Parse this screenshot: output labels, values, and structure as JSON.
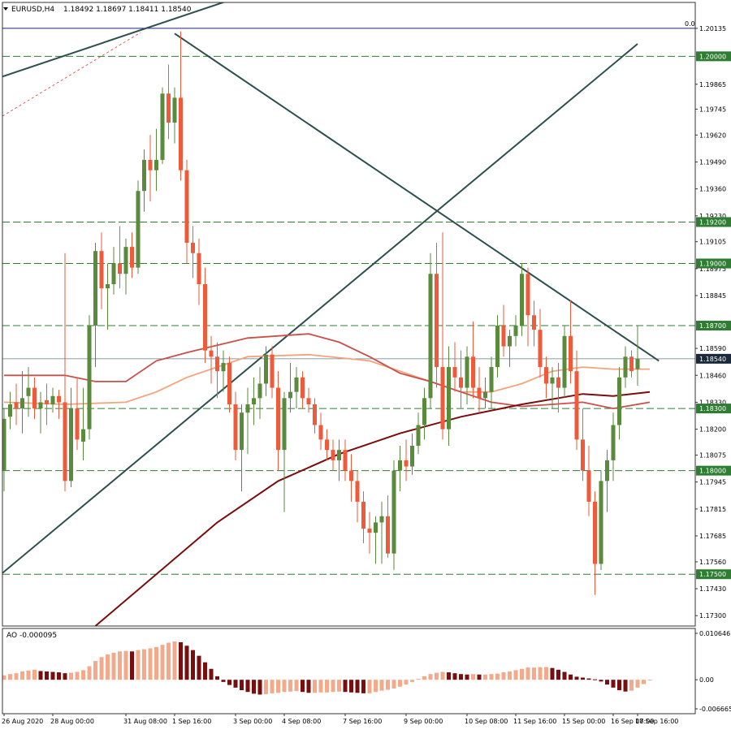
{
  "header": {
    "symbol": "EURUSD,H4",
    "ohlc": "1.18492 1.18697 1.18411 1.18540"
  },
  "oscillator": {
    "label": "AO -0.000095",
    "ticks": [
      "0.010646",
      "0.00",
      "-0.006665"
    ]
  },
  "colors": {
    "bull": "#5a8a3c",
    "bear": "#ee5a3a",
    "ma_fast": "#f4a37a",
    "ma_mid": "#c9504a",
    "ma_slow": "#7a0d0d",
    "level_line": "#2e7d32",
    "trend_line": "#2f4f4f",
    "ao_up": "#f4a98a",
    "ao_down": "#7a0d0d"
  },
  "chart_data": [
    {
      "type": "candlestick",
      "title": "EURUSD,H4",
      "ylim": [
        1.1725,
        1.2026
      ],
      "y_ticks": [
        "1.20135",
        "1.19865",
        "1.19745",
        "1.19620",
        "1.19490",
        "1.19360",
        "1.19230",
        "1.19105",
        "1.18975",
        "1.18845",
        "1.18590",
        "1.18460",
        "1.18330",
        "1.18200",
        "1.18075",
        "1.17945",
        "1.17815",
        "1.17685",
        "1.17560",
        "1.17430",
        "1.17300"
      ],
      "x_labels": [
        "26 Aug 2020",
        "28 Aug 00:00",
        "31 Aug 08:00",
        "1 Sep 16:00",
        "3 Sep 00:00",
        "4 Sep 08:00",
        "7 Sep 16:00",
        "9 Sep 00:00",
        "10 Sep 08:00",
        "11 Sep 16:00",
        "15 Sep 00:00",
        "16 Sep 08:00",
        "17 Sep 16:00"
      ],
      "levels": [
        {
          "value": 1.2,
          "label": "1.20000"
        },
        {
          "value": 1.192,
          "label": "1.19200"
        },
        {
          "value": 1.19,
          "label": "1.19000"
        },
        {
          "value": 1.187,
          "label": "1.18700"
        },
        {
          "value": 1.183,
          "label": "1.18300"
        },
        {
          "value": 1.18,
          "label": "1.18000"
        },
        {
          "value": 1.175,
          "label": "1.17500"
        }
      ],
      "current_price": {
        "value": 1.1854,
        "label": "1.18540"
      },
      "top_line_label": "0.0",
      "candles": [
        {
          "o": 1.18,
          "h": 1.183,
          "l": 1.179,
          "c": 1.1825
        },
        {
          "o": 1.1826,
          "h": 1.1838,
          "l": 1.182,
          "c": 1.1832
        },
        {
          "o": 1.1833,
          "h": 1.1842,
          "l": 1.1822,
          "c": 1.183
        },
        {
          "o": 1.183,
          "h": 1.1848,
          "l": 1.1818,
          "c": 1.1835
        },
        {
          "o": 1.1836,
          "h": 1.185,
          "l": 1.1826,
          "c": 1.184
        },
        {
          "o": 1.184,
          "h": 1.1845,
          "l": 1.1825,
          "c": 1.183
        },
        {
          "o": 1.183,
          "h": 1.1838,
          "l": 1.1818,
          "c": 1.1833
        },
        {
          "o": 1.1834,
          "h": 1.1842,
          "l": 1.1822,
          "c": 1.1832
        },
        {
          "o": 1.1832,
          "h": 1.184,
          "l": 1.1828,
          "c": 1.1836
        },
        {
          "o": 1.1836,
          "h": 1.1839,
          "l": 1.1825,
          "c": 1.1833
        },
        {
          "o": 1.1833,
          "h": 1.1905,
          "l": 1.179,
          "c": 1.1795
        },
        {
          "o": 1.1795,
          "h": 1.184,
          "l": 1.1792,
          "c": 1.183
        },
        {
          "o": 1.183,
          "h": 1.1845,
          "l": 1.181,
          "c": 1.1815
        },
        {
          "o": 1.1814,
          "h": 1.184,
          "l": 1.1805,
          "c": 1.182
        },
        {
          "o": 1.182,
          "h": 1.1875,
          "l": 1.1815,
          "c": 1.187
        },
        {
          "o": 1.187,
          "h": 1.191,
          "l": 1.185,
          "c": 1.1906
        },
        {
          "o": 1.1906,
          "h": 1.1915,
          "l": 1.1878,
          "c": 1.1888
        },
        {
          "o": 1.1888,
          "h": 1.19,
          "l": 1.1868,
          "c": 1.189
        },
        {
          "o": 1.189,
          "h": 1.1908,
          "l": 1.1885,
          "c": 1.19
        },
        {
          "o": 1.19,
          "h": 1.1918,
          "l": 1.1888,
          "c": 1.1895
        },
        {
          "o": 1.1895,
          "h": 1.1912,
          "l": 1.1885,
          "c": 1.1908
        },
        {
          "o": 1.1908,
          "h": 1.1915,
          "l": 1.1893,
          "c": 1.1898
        },
        {
          "o": 1.1898,
          "h": 1.194,
          "l": 1.1895,
          "c": 1.1935
        },
        {
          "o": 1.1935,
          "h": 1.1955,
          "l": 1.1925,
          "c": 1.195
        },
        {
          "o": 1.195,
          "h": 1.1962,
          "l": 1.193,
          "c": 1.1945
        },
        {
          "o": 1.1945,
          "h": 1.1965,
          "l": 1.1935,
          "c": 1.195
        },
        {
          "o": 1.195,
          "h": 1.1985,
          "l": 1.1948,
          "c": 1.1982
        },
        {
          "o": 1.1982,
          "h": 1.1996,
          "l": 1.196,
          "c": 1.1968
        },
        {
          "o": 1.1968,
          "h": 1.1985,
          "l": 1.1958,
          "c": 1.198
        },
        {
          "o": 1.198,
          "h": 1.2012,
          "l": 1.194,
          "c": 1.1945
        },
        {
          "o": 1.1945,
          "h": 1.195,
          "l": 1.19,
          "c": 1.191
        },
        {
          "o": 1.191,
          "h": 1.1918,
          "l": 1.1893,
          "c": 1.1905
        },
        {
          "o": 1.1905,
          "h": 1.1912,
          "l": 1.188,
          "c": 1.189
        },
        {
          "o": 1.189,
          "h": 1.1898,
          "l": 1.1852,
          "c": 1.1858
        },
        {
          "o": 1.1858,
          "h": 1.1865,
          "l": 1.1842,
          "c": 1.1855
        },
        {
          "o": 1.1855,
          "h": 1.1862,
          "l": 1.1835,
          "c": 1.1848
        },
        {
          "o": 1.1848,
          "h": 1.1858,
          "l": 1.1838,
          "c": 1.1852
        },
        {
          "o": 1.1852,
          "h": 1.1855,
          "l": 1.1828,
          "c": 1.1832
        },
        {
          "o": 1.1832,
          "h": 1.1838,
          "l": 1.1805,
          "c": 1.181
        },
        {
          "o": 1.181,
          "h": 1.1832,
          "l": 1.179,
          "c": 1.1828
        },
        {
          "o": 1.1828,
          "h": 1.184,
          "l": 1.1808,
          "c": 1.1832
        },
        {
          "o": 1.1832,
          "h": 1.1845,
          "l": 1.1822,
          "c": 1.1835
        },
        {
          "o": 1.1835,
          "h": 1.185,
          "l": 1.1825,
          "c": 1.1842
        },
        {
          "o": 1.1842,
          "h": 1.186,
          "l": 1.1836,
          "c": 1.1856
        },
        {
          "o": 1.1856,
          "h": 1.186,
          "l": 1.1835,
          "c": 1.184
        },
        {
          "o": 1.184,
          "h": 1.1848,
          "l": 1.18,
          "c": 1.181
        },
        {
          "o": 1.181,
          "h": 1.1838,
          "l": 1.178,
          "c": 1.1835
        },
        {
          "o": 1.1835,
          "h": 1.1852,
          "l": 1.1828,
          "c": 1.1838
        },
        {
          "o": 1.1838,
          "h": 1.185,
          "l": 1.183,
          "c": 1.1845
        },
        {
          "o": 1.1845,
          "h": 1.1848,
          "l": 1.183,
          "c": 1.1835
        },
        {
          "o": 1.1835,
          "h": 1.184,
          "l": 1.1828,
          "c": 1.1832
        },
        {
          "o": 1.1832,
          "h": 1.1835,
          "l": 1.1818,
          "c": 1.1822
        },
        {
          "o": 1.1822,
          "h": 1.1828,
          "l": 1.181,
          "c": 1.1815
        },
        {
          "o": 1.1815,
          "h": 1.182,
          "l": 1.1805,
          "c": 1.181
        },
        {
          "o": 1.181,
          "h": 1.1815,
          "l": 1.18,
          "c": 1.1805
        },
        {
          "o": 1.1805,
          "h": 1.1815,
          "l": 1.1795,
          "c": 1.181
        },
        {
          "o": 1.181,
          "h": 1.1815,
          "l": 1.1795,
          "c": 1.18
        },
        {
          "o": 1.18,
          "h": 1.1808,
          "l": 1.1785,
          "c": 1.1795
        },
        {
          "o": 1.1795,
          "h": 1.18,
          "l": 1.1775,
          "c": 1.1785
        },
        {
          "o": 1.1785,
          "h": 1.179,
          "l": 1.1765,
          "c": 1.1772
        },
        {
          "o": 1.1772,
          "h": 1.178,
          "l": 1.176,
          "c": 1.177
        },
        {
          "o": 1.177,
          "h": 1.1778,
          "l": 1.1755,
          "c": 1.1775
        },
        {
          "o": 1.1775,
          "h": 1.1785,
          "l": 1.1755,
          "c": 1.1778
        },
        {
          "o": 1.1778,
          "h": 1.1788,
          "l": 1.1758,
          "c": 1.176
        },
        {
          "o": 1.176,
          "h": 1.1805,
          "l": 1.1752,
          "c": 1.18
        },
        {
          "o": 1.18,
          "h": 1.1812,
          "l": 1.179,
          "c": 1.1805
        },
        {
          "o": 1.1805,
          "h": 1.1815,
          "l": 1.1795,
          "c": 1.1802
        },
        {
          "o": 1.1802,
          "h": 1.1818,
          "l": 1.1798,
          "c": 1.1812
        },
        {
          "o": 1.1812,
          "h": 1.1828,
          "l": 1.1808,
          "c": 1.1822
        },
        {
          "o": 1.1822,
          "h": 1.184,
          "l": 1.1815,
          "c": 1.1835
        },
        {
          "o": 1.1835,
          "h": 1.1905,
          "l": 1.183,
          "c": 1.1895
        },
        {
          "o": 1.1895,
          "h": 1.191,
          "l": 1.184,
          "c": 1.185
        },
        {
          "o": 1.185,
          "h": 1.1915,
          "l": 1.1815,
          "c": 1.182
        },
        {
          "o": 1.182,
          "h": 1.186,
          "l": 1.1812,
          "c": 1.185
        },
        {
          "o": 1.185,
          "h": 1.1862,
          "l": 1.1838,
          "c": 1.1845
        },
        {
          "o": 1.1845,
          "h": 1.1858,
          "l": 1.183,
          "c": 1.184
        },
        {
          "o": 1.184,
          "h": 1.186,
          "l": 1.1832,
          "c": 1.1855
        },
        {
          "o": 1.1855,
          "h": 1.1872,
          "l": 1.1835,
          "c": 1.184
        },
        {
          "o": 1.184,
          "h": 1.185,
          "l": 1.1828,
          "c": 1.1835
        },
        {
          "o": 1.1835,
          "h": 1.1845,
          "l": 1.183,
          "c": 1.1838
        },
        {
          "o": 1.1838,
          "h": 1.1855,
          "l": 1.183,
          "c": 1.185
        },
        {
          "o": 1.185,
          "h": 1.1875,
          "l": 1.1845,
          "c": 1.187
        },
        {
          "o": 1.187,
          "h": 1.188,
          "l": 1.1855,
          "c": 1.186
        },
        {
          "o": 1.186,
          "h": 1.1868,
          "l": 1.185,
          "c": 1.1865
        },
        {
          "o": 1.1865,
          "h": 1.1875,
          "l": 1.186,
          "c": 1.187
        },
        {
          "o": 1.187,
          "h": 1.19,
          "l": 1.1865,
          "c": 1.1895
        },
        {
          "o": 1.1895,
          "h": 1.1898,
          "l": 1.186,
          "c": 1.1875
        },
        {
          "o": 1.1875,
          "h": 1.1882,
          "l": 1.186,
          "c": 1.1868
        },
        {
          "o": 1.1868,
          "h": 1.1878,
          "l": 1.1845,
          "c": 1.185
        },
        {
          "o": 1.185,
          "h": 1.1855,
          "l": 1.1835,
          "c": 1.1842
        },
        {
          "o": 1.1842,
          "h": 1.185,
          "l": 1.183,
          "c": 1.1845
        },
        {
          "o": 1.1845,
          "h": 1.1852,
          "l": 1.1828,
          "c": 1.184
        },
        {
          "o": 1.184,
          "h": 1.187,
          "l": 1.1835,
          "c": 1.1865
        },
        {
          "o": 1.1865,
          "h": 1.1882,
          "l": 1.1842,
          "c": 1.1848
        },
        {
          "o": 1.1848,
          "h": 1.1858,
          "l": 1.181,
          "c": 1.1815
        },
        {
          "o": 1.1815,
          "h": 1.183,
          "l": 1.1795,
          "c": 1.18
        },
        {
          "o": 1.18,
          "h": 1.1812,
          "l": 1.1778,
          "c": 1.1785
        },
        {
          "o": 1.1785,
          "h": 1.179,
          "l": 1.174,
          "c": 1.1755
        },
        {
          "o": 1.1755,
          "h": 1.18,
          "l": 1.1752,
          "c": 1.1795
        },
        {
          "o": 1.1795,
          "h": 1.181,
          "l": 1.178,
          "c": 1.1805
        },
        {
          "o": 1.1805,
          "h": 1.1828,
          "l": 1.1795,
          "c": 1.1822
        },
        {
          "o": 1.1822,
          "h": 1.185,
          "l": 1.1815,
          "c": 1.1845
        },
        {
          "o": 1.1845,
          "h": 1.186,
          "l": 1.184,
          "c": 1.1855
        },
        {
          "o": 1.1855,
          "h": 1.1858,
          "l": 1.1845,
          "c": 1.1848
        },
        {
          "o": 1.1849,
          "h": 1.187,
          "l": 1.1841,
          "c": 1.1854
        }
      ],
      "moving_averages": [
        {
          "name": "ma_fast",
          "color": "#f4a37a",
          "points": [
            [
              0,
              1.1833
            ],
            [
              10,
              1.1832
            ],
            [
              20,
              1.1833
            ],
            [
              25,
              1.1838
            ],
            [
              30,
              1.1845
            ],
            [
              40,
              1.1855
            ],
            [
              50,
              1.1856
            ],
            [
              60,
              1.1853
            ],
            [
              65,
              1.1848
            ],
            [
              70,
              1.1843
            ],
            [
              75,
              1.1838
            ],
            [
              80,
              1.1838
            ],
            [
              85,
              1.1842
            ],
            [
              90,
              1.1848
            ],
            [
              95,
              1.185
            ],
            [
              100,
              1.1849
            ],
            [
              106,
              1.1849
            ]
          ]
        },
        {
          "name": "ma_mid",
          "color": "#c9504a",
          "points": [
            [
              0,
              1.1846
            ],
            [
              10,
              1.1846
            ],
            [
              15,
              1.1843
            ],
            [
              20,
              1.1843
            ],
            [
              25,
              1.1853
            ],
            [
              30,
              1.1857
            ],
            [
              40,
              1.1864
            ],
            [
              50,
              1.1866
            ],
            [
              55,
              1.1862
            ],
            [
              60,
              1.1855
            ],
            [
              65,
              1.1847
            ],
            [
              70,
              1.1843
            ],
            [
              75,
              1.1838
            ],
            [
              80,
              1.1833
            ],
            [
              85,
              1.1831
            ],
            [
              90,
              1.1832
            ],
            [
              95,
              1.1833
            ],
            [
              100,
              1.183
            ],
            [
              106,
              1.1833
            ]
          ]
        },
        {
          "name": "ma_slow",
          "color": "#7a0d0d",
          "points": [
            [
              15,
              1.1725
            ],
            [
              25,
              1.175
            ],
            [
              35,
              1.1775
            ],
            [
              45,
              1.1795
            ],
            [
              55,
              1.1808
            ],
            [
              65,
              1.1818
            ],
            [
              75,
              1.1826
            ],
            [
              85,
              1.1832
            ],
            [
              95,
              1.1837
            ],
            [
              100,
              1.1836
            ],
            [
              106,
              1.1838
            ]
          ]
        }
      ],
      "trend_lines": [
        {
          "from": [
            -0.5,
            1.199
          ],
          "to": [
            40,
            1.203
          ]
        },
        {
          "from": [
            28,
            1.2011
          ],
          "to": [
            107.5,
            1.1853
          ]
        },
        {
          "from": [
            -0.5,
            1.175
          ],
          "to": [
            104,
            1.2006
          ]
        }
      ],
      "ao_values": [
        0.001,
        0.0013,
        0.0015,
        0.0019,
        0.0021,
        0.0023,
        0.002,
        0.0019,
        0.0018,
        0.0017,
        0.0015,
        0.0016,
        0.0018,
        0.0022,
        0.0031,
        0.0043,
        0.0052,
        0.0058,
        0.0062,
        0.0065,
        0.0066,
        0.0065,
        0.0068,
        0.007,
        0.0072,
        0.0075,
        0.008,
        0.0085,
        0.0088,
        0.0086,
        0.0078,
        0.0068,
        0.0055,
        0.004,
        0.0025,
        0.0008,
        -0.0005,
        -0.0012,
        -0.0018,
        -0.0024,
        -0.0028,
        -0.0032,
        -0.0034,
        -0.0033,
        -0.0031,
        -0.003,
        -0.0028,
        -0.0027,
        -0.0026,
        -0.0028,
        -0.003,
        -0.003,
        -0.0029,
        -0.0029,
        -0.0028,
        -0.0027,
        -0.0028,
        -0.0029,
        -0.003,
        -0.0031,
        -0.0031,
        -0.0028,
        -0.0025,
        -0.0023,
        -0.002,
        -0.0016,
        -0.0011,
        -0.0005,
        0.0002,
        0.0008,
        0.0013,
        0.0016,
        0.0018,
        0.0017,
        0.0015,
        0.0013,
        0.0012,
        0.0013,
        0.0012,
        0.0012,
        0.0013,
        0.0014,
        0.0017,
        0.0019,
        0.0022,
        0.0025,
        0.0028,
        0.0028,
        0.0029,
        0.0029,
        0.0027,
        0.0023,
        0.0018,
        0.0012,
        0.0007,
        0.0005,
        0.0003,
        0.0001,
        -0.0004,
        -0.0011,
        -0.0018,
        -0.0024,
        -0.0027,
        -0.0025,
        -0.0018,
        -0.001,
        -0.0001
      ]
    }
  ]
}
